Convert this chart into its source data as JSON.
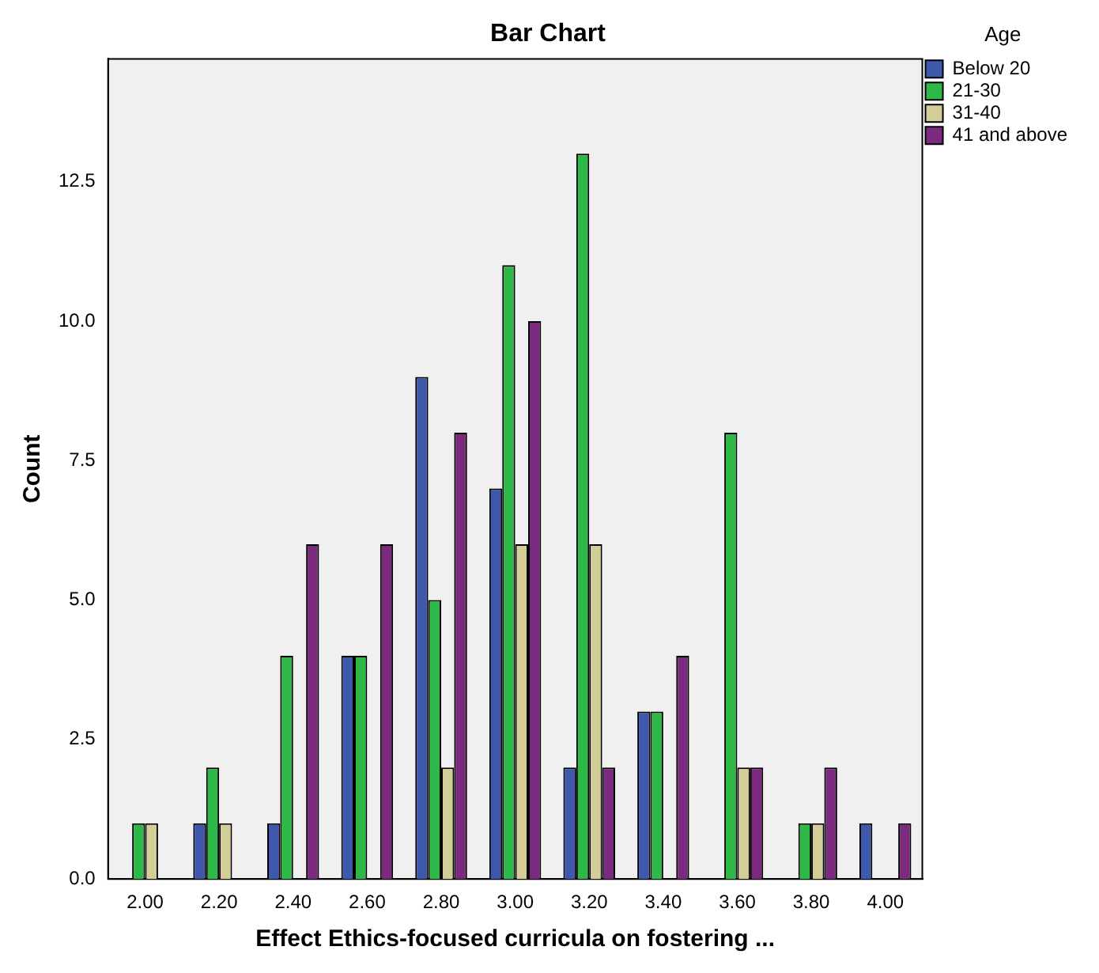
{
  "chart_data": {
    "type": "bar",
    "title": "Bar Chart",
    "xlabel": "Effect Ethics-focused curricula on fostering ...",
    "ylabel": "Count",
    "legend_title": "Age",
    "categories": [
      "2.00",
      "2.20",
      "2.40",
      "2.60",
      "2.80",
      "3.00",
      "3.20",
      "3.40",
      "3.60",
      "3.80",
      "4.00"
    ],
    "series": [
      {
        "name": "Below 20",
        "color": "#3e58ac",
        "values": [
          0,
          1,
          1,
          4,
          9,
          7,
          2,
          3,
          0,
          0,
          1
        ]
      },
      {
        "name": "21-30",
        "color": "#2eb848",
        "values": [
          1,
          2,
          4,
          4,
          5,
          11,
          13,
          3,
          8,
          1,
          0
        ]
      },
      {
        "name": "31-40",
        "color": "#d3ce97",
        "values": [
          1,
          1,
          0,
          0,
          2,
          6,
          6,
          0,
          2,
          1,
          0
        ]
      },
      {
        "name": "41 and above",
        "color": "#7b2a7f",
        "values": [
          0,
          0,
          6,
          6,
          8,
          10,
          2,
          4,
          2,
          2,
          1
        ]
      }
    ],
    "ylim": [
      0,
      14.7
    ],
    "yticks": [
      {
        "value": 0,
        "label": "0.0"
      },
      {
        "value": 2.5,
        "label": "2.5"
      },
      {
        "value": 5,
        "label": "5.0"
      },
      {
        "value": 7.5,
        "label": "7.5"
      },
      {
        "value": 10,
        "label": "10.0"
      },
      {
        "value": 12.5,
        "label": "12.5"
      }
    ],
    "grid": false,
    "legend": "top right"
  }
}
